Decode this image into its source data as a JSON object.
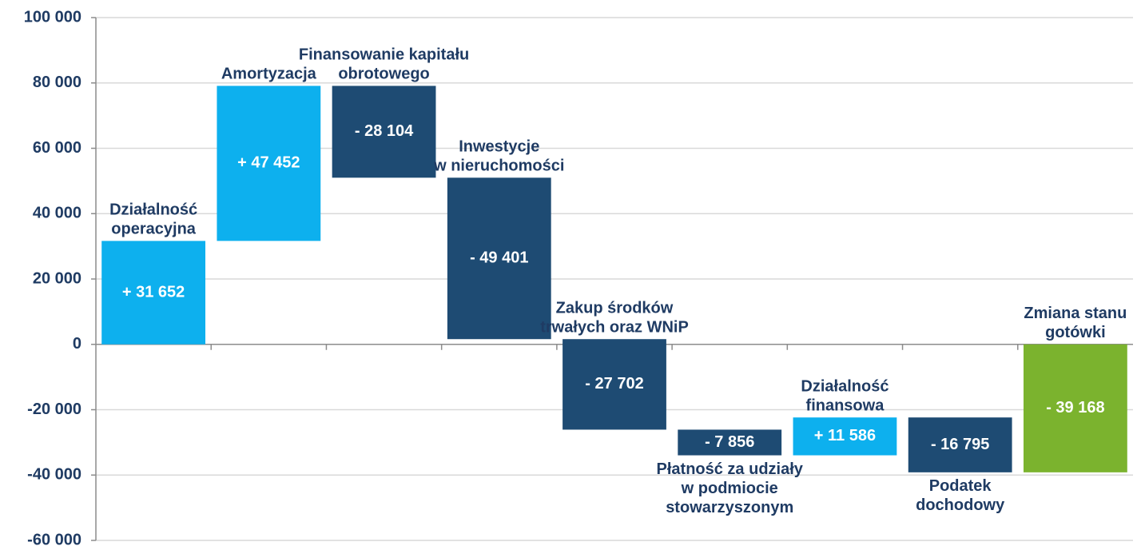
{
  "chart_data": {
    "type": "waterfall",
    "categories": [
      [
        "Działalność",
        "operacyjna"
      ],
      [
        "Amortyzacja"
      ],
      [
        "Finansowanie kapitału",
        "obrotowego"
      ],
      [
        "Inwestycje",
        "w nieruchomości"
      ],
      [
        "Zakup  środków",
        "trwałych oraz WNiP"
      ],
      [
        "Płatność  za udziały",
        "w podmiocie",
        "stowarzyszonym"
      ],
      [
        "Działalność",
        "finansowa"
      ],
      [
        "Podatek",
        "dochodowy"
      ],
      [
        "Zmiana stanu",
        "gotówki"
      ]
    ],
    "values": [
      31652,
      47452,
      -28104,
      -49401,
      -27702,
      -7856,
      11586,
      -16795,
      -39168
    ],
    "value_labels": [
      "+ 31 652",
      "+ 47 452",
      "- 28 104",
      "- 49 401",
      "- 27 702",
      "- 7 856",
      "+ 11 586",
      "- 16 795",
      "- 39 168"
    ],
    "last_is_total": true,
    "colors": {
      "positive": "#0db0ee",
      "negative": "#1e4b73",
      "total": "#7bb32e"
    },
    "ylim": [
      -60000,
      100000
    ],
    "yticks": [
      {
        "value": -60000,
        "label": "-60 000"
      },
      {
        "value": -40000,
        "label": "-40 000"
      },
      {
        "value": -20000,
        "label": "-20 000"
      },
      0,
      {
        "value": 20000,
        "label": "20 000"
      },
      {
        "value": 40000,
        "label": "40 000"
      },
      {
        "value": 60000,
        "label": "60 000"
      },
      {
        "value": 80000,
        "label": "80 000"
      },
      {
        "value": 100000,
        "label": "100 000"
      }
    ],
    "grid": true
  }
}
